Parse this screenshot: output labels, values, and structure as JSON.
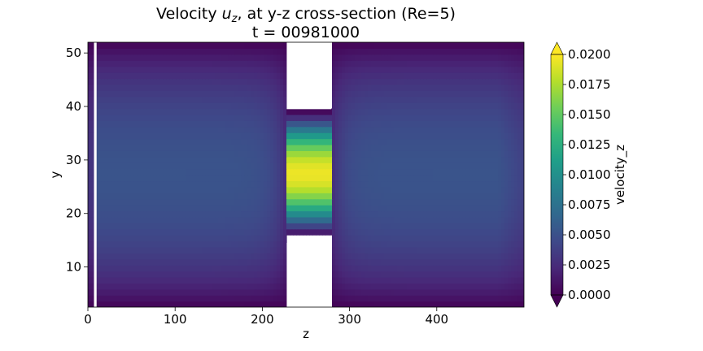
{
  "chart_data": {
    "type": "heatmap",
    "title_prefix": "Velocity ",
    "title_var": "u",
    "title_sub": "z",
    "title_suffix": ", at y-z cross-section (Re=5)",
    "subtitle": "t = 00981000",
    "xlabel": "z",
    "ylabel": "y",
    "colorbar_label": "velocity_z",
    "colormap": "viridis",
    "colorbar_extend": "both",
    "xlim": [
      0,
      500
    ],
    "ylim": [
      2.5,
      52
    ],
    "clim": [
      0.0,
      0.02
    ],
    "x_ticks": [
      0,
      100,
      200,
      300,
      400
    ],
    "y_ticks": [
      10,
      20,
      30,
      40,
      50
    ],
    "colorbar_ticks": [
      "0.0000",
      "0.0025",
      "0.0050",
      "0.0075",
      "0.0100",
      "0.0125",
      "0.0150",
      "0.0175",
      "0.0200"
    ],
    "field": {
      "channel_y_range": [
        2.5,
        52
      ],
      "channel_core_velocity": 0.0052,
      "throat_z_range": [
        228,
        279
      ],
      "throat_y_range": [
        15.5,
        39.5
      ],
      "throat_peak_velocity": 0.0195,
      "solid_obstacles": [
        {
          "z": [
            228,
            279
          ],
          "y": [
            2.5,
            14.5
          ]
        },
        {
          "z": [
            228,
            279
          ],
          "y": [
            39.5,
            52
          ]
        }
      ],
      "inlet_gap_z": [
        7,
        10
      ]
    }
  },
  "colors": {
    "viridis": [
      "#440154",
      "#482878",
      "#3e4989",
      "#31688e",
      "#26828e",
      "#1f9e89",
      "#35b779",
      "#6ece58",
      "#b5de2b",
      "#fde725"
    ],
    "background": "#ffffff",
    "solid": "#ffffff"
  }
}
